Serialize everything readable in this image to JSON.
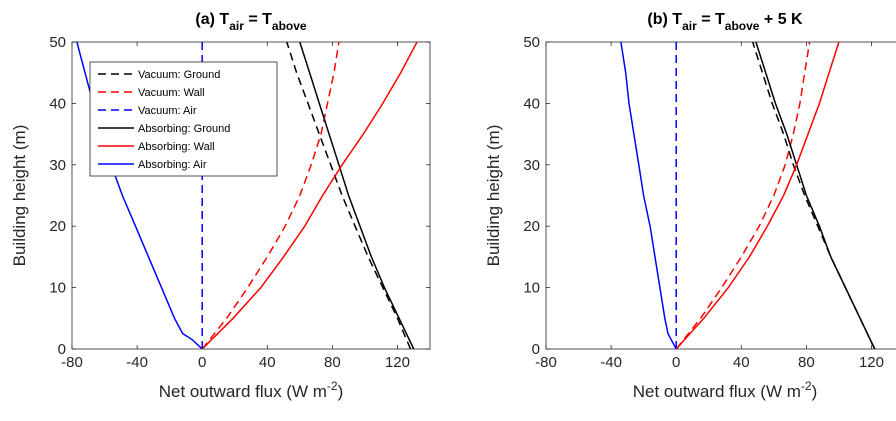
{
  "chart_data": [
    {
      "type": "line",
      "title": {
        "prefix": "(a) T",
        "sub1": "air",
        "mid": " = T",
        "sub2": "above",
        "suffix": ""
      },
      "xlabel": {
        "main": "Net outward flux (W m",
        "sup": "-2",
        "end": ")"
      },
      "ylabel": "Building height (m)",
      "xlim": [
        -80,
        140
      ],
      "ylim": [
        0,
        50
      ],
      "xticks": [
        -80,
        -40,
        0,
        40,
        80,
        120
      ],
      "yticks": [
        0,
        10,
        20,
        30,
        40,
        50
      ],
      "legend": "top-left",
      "series": [
        {
          "name": "Vacuum: Ground",
          "color": "#000000",
          "dash": true,
          "points": [
            [
              128,
              0
            ],
            [
              120,
              5
            ],
            [
              111,
              10
            ],
            [
              102,
              15
            ],
            [
              94,
              20
            ],
            [
              86,
              25
            ],
            [
              79,
              30
            ],
            [
              72,
              35
            ],
            [
              65,
              40
            ],
            [
              58,
              45
            ],
            [
              52,
              50
            ]
          ]
        },
        {
          "name": "Vacuum: Wall",
          "color": "#ff0000",
          "dash": true,
          "points": [
            [
              0,
              0
            ],
            [
              15,
              5
            ],
            [
              28,
              10
            ],
            [
              40,
              15
            ],
            [
              51,
              20
            ],
            [
              60,
              25
            ],
            [
              67,
              30
            ],
            [
              73,
              35
            ],
            [
              77,
              40
            ],
            [
              81,
              45
            ],
            [
              84,
              50
            ]
          ]
        },
        {
          "name": "Vacuum: Air",
          "color": "#0000ff",
          "dash": true,
          "points": [
            [
              0,
              0
            ],
            [
              0,
              50
            ]
          ]
        },
        {
          "name": "Absorbing: Ground",
          "color": "#000000",
          "dash": false,
          "points": [
            [
              130,
              0
            ],
            [
              121,
              5
            ],
            [
              112,
              10
            ],
            [
              104,
              15
            ],
            [
              97,
              20
            ],
            [
              90,
              25
            ],
            [
              84,
              30
            ],
            [
              78,
              35
            ],
            [
              72,
              40
            ],
            [
              66,
              45
            ],
            [
              60,
              50
            ]
          ]
        },
        {
          "name": "Absorbing: Wall",
          "color": "#ff0000",
          "dash": false,
          "points": [
            [
              0,
              0
            ],
            [
              19,
              5
            ],
            [
              36,
              10
            ],
            [
              50,
              15
            ],
            [
              63,
              20
            ],
            [
              74,
              25
            ],
            [
              86,
              30
            ],
            [
              99,
              35
            ],
            [
              111,
              40
            ],
            [
              122,
              45
            ],
            [
              132,
              50
            ]
          ]
        },
        {
          "name": "Absorbing: Air",
          "color": "#0000ff",
          "dash": false,
          "points": [
            [
              0,
              0
            ],
            [
              -6,
              1.5
            ],
            [
              -12,
              2.5
            ],
            [
              -17,
              5
            ],
            [
              -25,
              10
            ],
            [
              -33,
              15
            ],
            [
              -41,
              20
            ],
            [
              -49,
              25
            ],
            [
              -56,
              30
            ],
            [
              -62,
              35
            ],
            [
              -67,
              40
            ],
            [
              -72,
              45
            ],
            [
              -77,
              50
            ]
          ]
        }
      ]
    },
    {
      "type": "line",
      "title": {
        "prefix": "(b) T",
        "sub1": "air",
        "mid": " = T",
        "sub2": "above",
        "suffix": " + 5 K"
      },
      "xlabel": {
        "main": "Net outward flux (W m",
        "sup": "-2",
        "end": ")"
      },
      "ylabel": "Building height (m)",
      "xlim": [
        -80,
        140
      ],
      "ylim": [
        0,
        50
      ],
      "xticks": [
        -80,
        -40,
        0,
        40,
        80,
        120
      ],
      "yticks": [
        0,
        10,
        20,
        30,
        40,
        50
      ],
      "series": [
        {
          "name": "Vacuum: Ground",
          "color": "#000000",
          "dash": true,
          "points": [
            [
              122,
              0
            ],
            [
              113,
              5
            ],
            [
              104,
              10
            ],
            [
              95,
              15
            ],
            [
              87,
              20
            ],
            [
              79,
              25
            ],
            [
              72,
              30
            ],
            [
              66,
              35
            ],
            [
              59,
              40
            ],
            [
              53,
              45
            ],
            [
              47,
              50
            ]
          ]
        },
        {
          "name": "Vacuum: Wall",
          "color": "#ff0000",
          "dash": true,
          "points": [
            [
              0,
              0
            ],
            [
              15,
              5
            ],
            [
              28,
              10
            ],
            [
              40,
              15
            ],
            [
              51,
              20
            ],
            [
              60,
              25
            ],
            [
              67,
              30
            ],
            [
              72,
              35
            ],
            [
              76,
              40
            ],
            [
              79,
              45
            ],
            [
              82,
              50
            ]
          ]
        },
        {
          "name": "Vacuum: Air",
          "color": "#0000ff",
          "dash": true,
          "points": [
            [
              0,
              0
            ],
            [
              0,
              50
            ]
          ]
        },
        {
          "name": "Absorbing: Ground",
          "color": "#000000",
          "dash": false,
          "points": [
            [
              122,
              0
            ],
            [
              113,
              5
            ],
            [
              104,
              10
            ],
            [
              95,
              15
            ],
            [
              88,
              20
            ],
            [
              80,
              25
            ],
            [
              74,
              30
            ],
            [
              68,
              35
            ],
            [
              61,
              40
            ],
            [
              55,
              45
            ],
            [
              49,
              50
            ]
          ]
        },
        {
          "name": "Absorbing: Wall",
          "color": "#ff0000",
          "dash": false,
          "points": [
            [
              0,
              0
            ],
            [
              17,
              5
            ],
            [
              32,
              10
            ],
            [
              45,
              15
            ],
            [
              56,
              20
            ],
            [
              66,
              25
            ],
            [
              74,
              30
            ],
            [
              81,
              35
            ],
            [
              88,
              40
            ],
            [
              94,
              45
            ],
            [
              100,
              50
            ]
          ]
        },
        {
          "name": "Absorbing: Air",
          "color": "#0000ff",
          "dash": false,
          "points": [
            [
              0,
              0
            ],
            [
              -3,
              1.5
            ],
            [
              -5,
              2.5
            ],
            [
              -7,
              5
            ],
            [
              -10,
              10
            ],
            [
              -13,
              15
            ],
            [
              -16,
              20
            ],
            [
              -20,
              25
            ],
            [
              -23,
              30
            ],
            [
              -26,
              35
            ],
            [
              -29,
              40
            ],
            [
              -31,
              45
            ],
            [
              -34,
              50
            ]
          ]
        }
      ]
    }
  ]
}
